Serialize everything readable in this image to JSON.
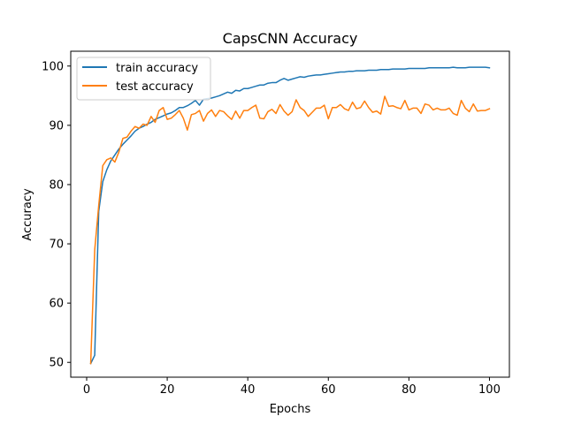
{
  "chart_data": {
    "type": "line",
    "title": "CapsCNN Accuracy",
    "xlabel": "Epochs",
    "ylabel": "Accuracy",
    "xlim": [
      -3.95,
      104.95
    ],
    "ylim": [
      47.5,
      102.5
    ],
    "xticks": [
      0,
      20,
      40,
      60,
      80,
      100
    ],
    "yticks": [
      50,
      60,
      70,
      80,
      90,
      100
    ],
    "legend_position": "upper-left",
    "grid": false,
    "colors": {
      "train": "#1f77b4",
      "test": "#ff7f0e"
    },
    "series": [
      {
        "name": "train accuracy",
        "color": "#1f77b4",
        "x": [
          1,
          2,
          3,
          4,
          5,
          6,
          7,
          8,
          9,
          10,
          11,
          12,
          13,
          14,
          15,
          16,
          17,
          18,
          19,
          20,
          21,
          22,
          23,
          24,
          25,
          26,
          27,
          28,
          29,
          30,
          31,
          32,
          33,
          34,
          35,
          36,
          37,
          38,
          39,
          40,
          41,
          42,
          43,
          44,
          45,
          46,
          47,
          48,
          49,
          50,
          51,
          52,
          53,
          54,
          55,
          56,
          57,
          58,
          59,
          60,
          61,
          62,
          63,
          64,
          65,
          66,
          67,
          68,
          69,
          70,
          71,
          72,
          73,
          74,
          75,
          76,
          77,
          78,
          79,
          80,
          81,
          82,
          83,
          84,
          85,
          86,
          87,
          88,
          89,
          90,
          91,
          92,
          93,
          94,
          95,
          96,
          97,
          98,
          99,
          100
        ],
        "values": [
          49.8,
          51.2,
          75.5,
          80.5,
          82.5,
          84.0,
          85.0,
          86.0,
          86.8,
          87.5,
          88.2,
          89.0,
          89.5,
          89.8,
          90.2,
          90.5,
          91.0,
          91.3,
          91.6,
          91.9,
          92.1,
          92.5,
          93.0,
          93.0,
          93.3,
          93.7,
          94.2,
          93.4,
          94.4,
          94.5,
          94.6,
          94.8,
          95.0,
          95.3,
          95.6,
          95.4,
          95.9,
          95.8,
          96.2,
          96.2,
          96.4,
          96.6,
          96.8,
          96.8,
          97.1,
          97.2,
          97.2,
          97.6,
          97.9,
          97.6,
          97.8,
          98.0,
          98.2,
          98.1,
          98.3,
          98.4,
          98.5,
          98.5,
          98.6,
          98.7,
          98.8,
          98.9,
          99.0,
          99.0,
          99.1,
          99.1,
          99.2,
          99.2,
          99.2,
          99.3,
          99.3,
          99.3,
          99.4,
          99.4,
          99.4,
          99.5,
          99.5,
          99.5,
          99.5,
          99.6,
          99.6,
          99.6,
          99.6,
          99.6,
          99.7,
          99.7,
          99.7,
          99.7,
          99.7,
          99.7,
          99.8,
          99.7,
          99.7,
          99.7,
          99.8,
          99.8,
          99.8,
          99.8,
          99.8,
          99.7
        ]
      },
      {
        "name": "test accuracy",
        "color": "#ff7f0e",
        "x": [
          1,
          2,
          3,
          4,
          5,
          6,
          7,
          8,
          9,
          10,
          11,
          12,
          13,
          14,
          15,
          16,
          17,
          18,
          19,
          20,
          21,
          22,
          23,
          24,
          25,
          26,
          27,
          28,
          29,
          30,
          31,
          32,
          33,
          34,
          35,
          36,
          37,
          38,
          39,
          40,
          41,
          42,
          43,
          44,
          45,
          46,
          47,
          48,
          49,
          50,
          51,
          52,
          53,
          54,
          55,
          56,
          57,
          58,
          59,
          60,
          61,
          62,
          63,
          64,
          65,
          66,
          67,
          68,
          69,
          70,
          71,
          72,
          73,
          74,
          75,
          76,
          77,
          78,
          79,
          80,
          81,
          82,
          83,
          84,
          85,
          86,
          87,
          88,
          89,
          90,
          91,
          92,
          93,
          94,
          95,
          96,
          97,
          98,
          99,
          100
        ],
        "values": [
          49.8,
          69.0,
          76.5,
          83.2,
          84.2,
          84.5,
          83.8,
          85.5,
          87.8,
          88.0,
          89.0,
          89.8,
          89.5,
          90.2,
          90.0,
          91.5,
          90.5,
          92.5,
          93.0,
          91.0,
          91.2,
          91.8,
          92.5,
          91.2,
          89.2,
          91.8,
          92.0,
          92.5,
          90.7,
          92.0,
          92.6,
          91.5,
          92.5,
          92.3,
          91.6,
          91.0,
          92.4,
          91.2,
          92.5,
          92.5,
          93.0,
          93.4,
          91.2,
          91.1,
          92.3,
          92.7,
          92.0,
          93.5,
          92.4,
          91.7,
          92.3,
          94.3,
          93.0,
          92.5,
          91.5,
          92.2,
          92.9,
          92.9,
          93.4,
          91.1,
          93.0,
          93.0,
          93.5,
          92.8,
          92.5,
          93.9,
          92.8,
          93.0,
          94.1,
          93.0,
          92.2,
          92.4,
          91.9,
          94.9,
          93.2,
          93.3,
          93.0,
          92.8,
          94.2,
          92.6,
          92.9,
          92.9,
          92.0,
          93.6,
          93.4,
          92.6,
          92.9,
          92.6,
          92.6,
          92.9,
          92.0,
          91.7,
          94.2,
          92.9,
          92.3,
          93.6,
          92.4,
          92.5,
          92.5,
          92.8
        ]
      }
    ]
  }
}
